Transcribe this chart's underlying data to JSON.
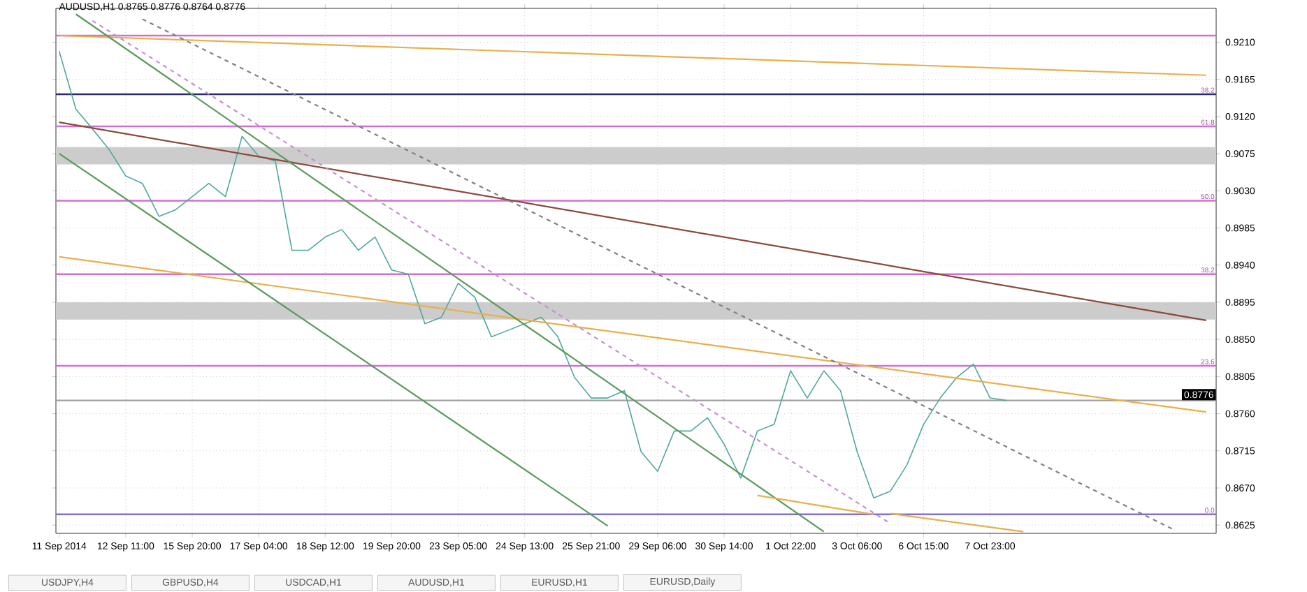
{
  "chart_data": {
    "type": "line",
    "title": "AUDUSD,H1 0.8765 0.8776 0.8764 0.8776",
    "categories": [
      "11 Sep 2014",
      null,
      null,
      null,
      "12 Sep 11:00",
      null,
      null,
      null,
      "15 Sep 20:00",
      null,
      null,
      null,
      "17 Sep 04:00",
      null,
      null,
      null,
      "18 Sep 12:00",
      null,
      null,
      null,
      "19 Sep 20:00",
      null,
      null,
      null,
      "23 Sep 05:00",
      null,
      null,
      null,
      "24 Sep 13:00",
      null,
      null,
      null,
      "25 Sep 21:00",
      null,
      null,
      null,
      "29 Sep 06:00",
      null,
      null,
      null,
      "30 Sep 14:00",
      null,
      null,
      null,
      "1 Oct 22:00",
      null,
      null,
      null,
      "3 Oct 06:00",
      null,
      null,
      null,
      "6 Oct 15:00",
      null,
      null,
      null,
      "7 Oct 23:00",
      null,
      null,
      null,
      null,
      null,
      null,
      null,
      null,
      null,
      null,
      null,
      null,
      null
    ],
    "ylim": [
      0.8615,
      0.9251
    ],
    "yticks": [
      {
        "value": 0.8625,
        "label": "0.8625"
      },
      {
        "value": 0.867,
        "label": "0.8670"
      },
      {
        "value": 0.8715,
        "label": "0.8715"
      },
      {
        "value": 0.876,
        "label": "0.8760"
      },
      {
        "value": 0.8805,
        "label": "0.8805"
      },
      {
        "value": 0.885,
        "label": "0.8850"
      },
      {
        "value": 0.8895,
        "label": "0.8895"
      },
      {
        "value": 0.894,
        "label": "0.8940"
      },
      {
        "value": 0.8985,
        "label": "0.8985"
      },
      {
        "value": 0.903,
        "label": "0.9030"
      },
      {
        "value": 0.9075,
        "label": "0.9075"
      },
      {
        "value": 0.912,
        "label": "0.9120"
      },
      {
        "value": 0.9165,
        "label": "0.9165"
      },
      {
        "value": 0.921,
        "label": "0.9210"
      }
    ],
    "grid": true,
    "marker": "none",
    "series": [
      {
        "color": "#4fa8a0",
        "values": [
          0.9199,
          0.9129,
          0.9105,
          0.908,
          0.9048,
          0.9039,
          0.8999,
          0.9007,
          0.9023,
          0.9039,
          0.9023,
          0.9096,
          0.9072,
          0.9066,
          0.8958,
          0.8958,
          0.8974,
          0.8983,
          0.8958,
          0.8974,
          0.8934,
          0.8929,
          0.8869,
          0.8877,
          0.8918,
          0.8901,
          0.8853,
          0.8861,
          0.8869,
          0.8877,
          0.8853,
          0.8804,
          0.8779,
          0.8779,
          0.8788,
          0.8714,
          0.869,
          0.8739,
          0.8739,
          0.8755,
          0.8723,
          0.8682,
          0.8739,
          0.8747,
          0.8812,
          0.8779,
          0.8812,
          0.8788,
          0.8714,
          0.8658,
          0.8666,
          0.8698,
          0.8747,
          0.8779,
          0.8804,
          0.882,
          0.8779,
          0.8776,
          null,
          null,
          null,
          null,
          null,
          null,
          null,
          null,
          null,
          null,
          null,
          null
        ]
      },
      {
        "color": "#e8b04a",
        "values": [
          0.9218,
          null,
          null,
          null,
          null,
          null,
          null,
          null,
          null,
          null,
          null,
          null,
          null,
          null,
          null,
          null,
          null,
          null,
          null,
          null,
          null,
          null,
          null,
          null,
          null,
          null,
          null,
          null,
          null,
          null,
          null,
          null,
          null,
          null,
          null,
          null,
          null,
          null,
          null,
          null,
          null,
          null,
          null,
          null,
          null,
          null,
          null,
          null,
          null,
          null,
          null,
          null,
          null,
          null,
          null,
          null,
          null,
          null,
          null,
          null,
          null,
          null,
          null,
          null,
          null,
          null,
          null,
          null,
          null,
          0.917
        ]
      },
      {
        "color": "#8b4a3a",
        "values": [
          0.9113,
          null,
          null,
          null,
          null,
          null,
          null,
          null,
          null,
          null,
          null,
          null,
          null,
          null,
          null,
          null,
          null,
          null,
          null,
          null,
          null,
          null,
          null,
          null,
          null,
          null,
          null,
          null,
          null,
          null,
          null,
          null,
          null,
          null,
          null,
          null,
          null,
          null,
          null,
          null,
          null,
          null,
          null,
          null,
          null,
          null,
          null,
          null,
          null,
          null,
          null,
          null,
          null,
          null,
          null,
          null,
          null,
          null,
          null,
          null,
          null,
          null,
          null,
          null,
          null,
          null,
          null,
          null,
          null,
          0.8873
        ]
      },
      {
        "color": "#e8b04a",
        "values": [
          0.895,
          null,
          null,
          null,
          null,
          null,
          null,
          null,
          null,
          null,
          null,
          null,
          null,
          null,
          null,
          null,
          null,
          null,
          null,
          null,
          null,
          null,
          null,
          null,
          null,
          null,
          null,
          null,
          null,
          null,
          null,
          null,
          null,
          null,
          null,
          null,
          null,
          null,
          null,
          null,
          null,
          null,
          null,
          null,
          null,
          null,
          null,
          null,
          null,
          null,
          null,
          null,
          null,
          null,
          null,
          null,
          null,
          null,
          null,
          null,
          null,
          null,
          null,
          null,
          null,
          null,
          null,
          null,
          null,
          0.8762
        ]
      },
      {
        "color": "#5a9a5a",
        "values": [
          null,
          0.9244,
          null,
          null,
          null,
          null,
          null,
          null,
          null,
          null,
          null,
          null,
          null,
          null,
          null,
          null,
          null,
          null,
          null,
          null,
          null,
          null,
          null,
          null,
          null,
          null,
          null,
          null,
          null,
          null,
          null,
          null,
          null,
          null,
          null,
          null,
          null,
          null,
          null,
          null,
          null,
          null,
          null,
          null,
          null,
          null,
          0.8617,
          null,
          null,
          null,
          null,
          null,
          null,
          null,
          null,
          null,
          null,
          null,
          null,
          null,
          null,
          null,
          null,
          null,
          null,
          null,
          null,
          null,
          null,
          null
        ]
      },
      {
        "color": "#5a9a5a",
        "values": [
          0.9075,
          null,
          null,
          null,
          null,
          null,
          null,
          null,
          null,
          null,
          null,
          null,
          null,
          null,
          null,
          null,
          null,
          null,
          null,
          null,
          null,
          null,
          null,
          null,
          null,
          null,
          null,
          null,
          null,
          null,
          null,
          null,
          null,
          0.8624,
          null,
          null,
          null,
          null,
          null,
          null,
          null,
          null,
          null,
          null,
          null,
          null,
          null,
          null,
          null,
          null,
          null,
          null,
          null,
          null,
          null,
          null,
          null,
          null,
          null,
          null,
          null,
          null,
          null,
          null,
          null,
          null,
          null,
          null,
          null,
          null
        ]
      },
      {
        "color": "#c890d0",
        "line_style": "dashed",
        "values": [
          null,
          null,
          0.9236,
          null,
          null,
          null,
          null,
          null,
          null,
          null,
          null,
          null,
          null,
          null,
          null,
          null,
          null,
          null,
          null,
          null,
          null,
          null,
          null,
          null,
          null,
          null,
          null,
          null,
          null,
          null,
          null,
          null,
          null,
          null,
          null,
          null,
          null,
          null,
          null,
          null,
          null,
          null,
          null,
          null,
          null,
          null,
          null,
          null,
          null,
          null,
          0.8627,
          null,
          null,
          null,
          null,
          null,
          null,
          null,
          null,
          null,
          null,
          null,
          null,
          null,
          null,
          null,
          null,
          null,
          null,
          null
        ]
      },
      {
        "color": "#808080",
        "line_style": "dashed",
        "values": [
          null,
          null,
          null,
          null,
          null,
          0.9238,
          null,
          null,
          null,
          null,
          null,
          null,
          null,
          null,
          null,
          null,
          null,
          null,
          null,
          null,
          null,
          null,
          null,
          null,
          null,
          null,
          null,
          null,
          null,
          null,
          null,
          null,
          null,
          null,
          null,
          null,
          null,
          null,
          null,
          null,
          null,
          null,
          null,
          null,
          null,
          null,
          null,
          null,
          null,
          null,
          null,
          null,
          null,
          null,
          null,
          null,
          null,
          null,
          null,
          null,
          null,
          null,
          null,
          null,
          null,
          null,
          null,
          0.862,
          null,
          null
        ]
      },
      {
        "color": "#e8b04a",
        "values": [
          null,
          null,
          null,
          null,
          null,
          null,
          null,
          null,
          null,
          null,
          null,
          null,
          null,
          null,
          null,
          null,
          null,
          null,
          null,
          null,
          null,
          null,
          null,
          null,
          null,
          null,
          null,
          null,
          null,
          null,
          null,
          null,
          null,
          null,
          null,
          null,
          null,
          null,
          null,
          null,
          null,
          null,
          0.8661,
          null,
          null,
          null,
          null,
          null,
          null,
          0.8638,
          null,
          null,
          null,
          null,
          null,
          null,
          null,
          null,
          null,
          null,
          null,
          null,
          null,
          null,
          null,
          null,
          null,
          null,
          null,
          null
        ]
      },
      {
        "color": "#e8b04a",
        "values": [
          null,
          null,
          null,
          null,
          null,
          null,
          null,
          null,
          null,
          null,
          null,
          null,
          null,
          null,
          null,
          null,
          null,
          null,
          null,
          null,
          null,
          null,
          null,
          null,
          null,
          null,
          null,
          null,
          null,
          null,
          null,
          null,
          null,
          null,
          null,
          null,
          null,
          null,
          null,
          null,
          null,
          null,
          null,
          null,
          null,
          null,
          null,
          null,
          null,
          null,
          0.8639,
          null,
          null,
          null,
          null,
          null,
          null,
          null,
          0.8617,
          null,
          null,
          null,
          null,
          null,
          null,
          null,
          null,
          null,
          null,
          null
        ]
      }
    ],
    "bands": [
      {
        "axis": "y",
        "from": 0.9062,
        "to": 0.9083,
        "color": "#cccccc"
      },
      {
        "axis": "y",
        "from": 0.8874,
        "to": 0.8895,
        "color": "#cccccc"
      }
    ],
    "ref_lines": [
      {
        "axis": "y",
        "value": 0.9218,
        "color": "#d070d0"
      },
      {
        "axis": "y",
        "value": 0.9147,
        "color": "#2a2a70"
      },
      {
        "axis": "y",
        "value": 0.9108,
        "color": "#d070d0"
      },
      {
        "axis": "y",
        "value": 0.9018,
        "color": "#d070d0"
      },
      {
        "axis": "y",
        "value": 0.8929,
        "color": "#d070d0"
      },
      {
        "axis": "y",
        "value": 0.8818,
        "color": "#d070d0"
      },
      {
        "axis": "y",
        "value": 0.8776,
        "label": "0.8776",
        "color": "#a0a0a0"
      },
      {
        "axis": "y",
        "value": 0.8638,
        "color": "#8070d0"
      }
    ],
    "annotations": [
      {
        "text": "38.2",
        "y": 0.9147
      },
      {
        "text": "61.8",
        "y": 0.9108
      },
      {
        "text": "50.0",
        "y": 0.9018
      },
      {
        "text": "38.2",
        "y": 0.8929
      },
      {
        "text": "23.6",
        "y": 0.8818
      },
      {
        "text": "0.0",
        "y": 0.8638
      },
      "USDJPY,H4",
      "GBPUSD,H4",
      "USDCAD,H1",
      "AUDUSD,H1",
      "EURUSD,H1",
      "EURUSD,Daily"
    ]
  }
}
